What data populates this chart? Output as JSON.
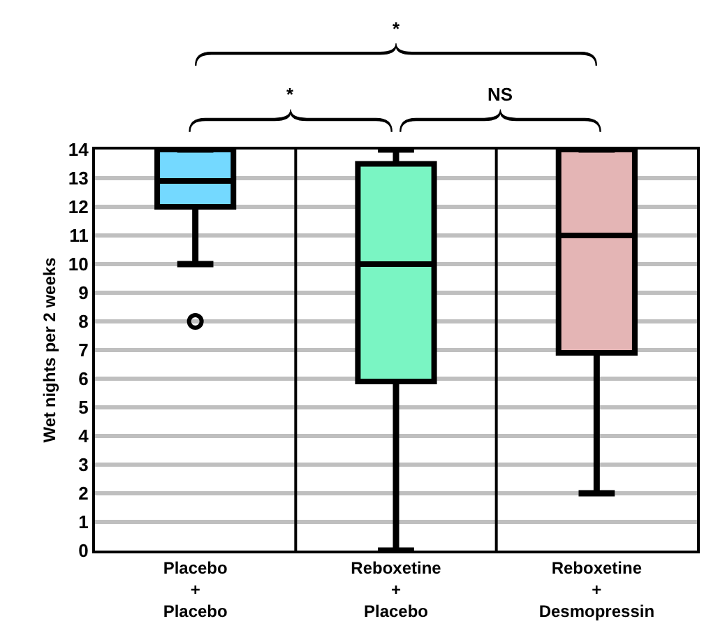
{
  "chart_data": {
    "type": "box",
    "ylabel": "Wet nights per 2 weeks",
    "categories": [
      "Placebo\n+\nPlacebo",
      "Reboxetine\n+\nPlacebo",
      "Reboxetine\n+\nDesmopressin"
    ],
    "colors": [
      "#74d9ff",
      "#7af5c3",
      "#e4b5b5"
    ],
    "boxes": [
      {
        "low": 10,
        "q1": 12,
        "median": 12.9,
        "q3": 14,
        "high": 14,
        "outliers": [
          8
        ]
      },
      {
        "low": 0,
        "q1": 5.9,
        "median": 10,
        "q3": 13.5,
        "high": 14
      },
      {
        "low": 2,
        "q1": 6.9,
        "median": 11,
        "q3": 14,
        "high": 14
      }
    ],
    "ylim": [
      0,
      14
    ],
    "yticks": [
      0,
      1,
      2,
      3,
      4,
      5,
      6,
      7,
      8,
      9,
      10,
      11,
      12,
      13,
      14
    ],
    "grid": "y",
    "annotations": [
      "*",
      "NS",
      "*"
    ]
  }
}
